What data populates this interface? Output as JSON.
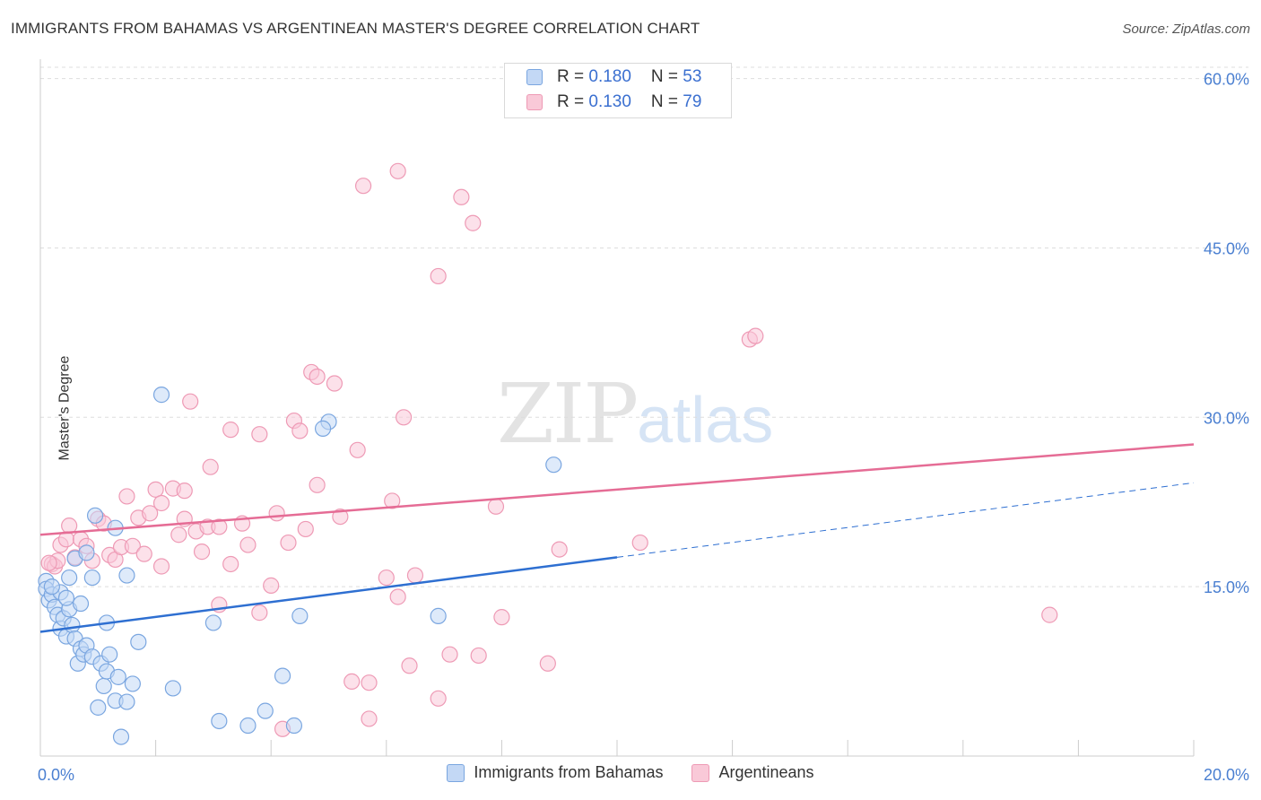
{
  "title": "IMMIGRANTS FROM BAHAMAS VS ARGENTINEAN MASTER'S DEGREE CORRELATION CHART",
  "source": "Source: ZipAtlas.com",
  "watermark": {
    "a": "ZIP",
    "b": "atlas"
  },
  "legend": {
    "rows": [
      {
        "r_label": "R = ",
        "r_value": "0.180",
        "n_label": "N = ",
        "n_value": "53"
      },
      {
        "r_label": "R = ",
        "r_value": "0.130",
        "n_label": "N = ",
        "n_value": "79"
      }
    ]
  },
  "colors": {
    "blue_fill": "#c3d8f5",
    "blue_stroke": "#7aa6e0",
    "blue_line": "#2e6fd1",
    "pink_fill": "#f9c9d8",
    "pink_stroke": "#ee9ab5",
    "pink_line": "#e56c95"
  },
  "chart_data": {
    "type": "scatter",
    "ylabel": "Master's Degree",
    "xlim": [
      0,
      20
    ],
    "ylim": [
      0,
      61
    ],
    "x_tick_labels": [
      "0.0%",
      "20.0%"
    ],
    "y_ticks": [
      15,
      30,
      45,
      60
    ],
    "y_tick_labels": [
      "15.0%",
      "30.0%",
      "45.0%",
      "60.0%"
    ],
    "grid": true,
    "series": [
      {
        "name": "Immigrants from Bahamas",
        "points": [
          [
            0.1,
            15.5
          ],
          [
            0.1,
            14.8
          ],
          [
            0.15,
            13.8
          ],
          [
            0.2,
            14.3
          ],
          [
            0.25,
            13.2
          ],
          [
            0.3,
            12.5
          ],
          [
            0.35,
            14.5
          ],
          [
            0.35,
            11.3
          ],
          [
            0.4,
            12.2
          ],
          [
            0.45,
            10.6
          ],
          [
            0.5,
            13.0
          ],
          [
            0.5,
            15.8
          ],
          [
            0.55,
            11.6
          ],
          [
            0.6,
            17.5
          ],
          [
            0.6,
            10.4
          ],
          [
            0.65,
            8.2
          ],
          [
            0.7,
            9.5
          ],
          [
            0.7,
            13.5
          ],
          [
            0.75,
            9.0
          ],
          [
            0.8,
            9.8
          ],
          [
            0.8,
            18.0
          ],
          [
            0.9,
            8.8
          ],
          [
            0.9,
            15.8
          ],
          [
            0.95,
            21.3
          ],
          [
            1.0,
            4.3
          ],
          [
            1.05,
            8.2
          ],
          [
            1.1,
            6.2
          ],
          [
            1.15,
            7.5
          ],
          [
            1.15,
            11.8
          ],
          [
            1.2,
            9.0
          ],
          [
            1.3,
            20.2
          ],
          [
            1.3,
            4.9
          ],
          [
            1.35,
            7.0
          ],
          [
            1.4,
            1.7
          ],
          [
            1.5,
            16.0
          ],
          [
            1.5,
            4.8
          ],
          [
            1.6,
            6.4
          ],
          [
            1.7,
            10.1
          ],
          [
            2.1,
            32.0
          ],
          [
            2.3,
            6.0
          ],
          [
            3.0,
            11.8
          ],
          [
            3.1,
            3.1
          ],
          [
            3.6,
            2.7
          ],
          [
            3.9,
            4.0
          ],
          [
            4.2,
            7.1
          ],
          [
            4.4,
            2.7
          ],
          [
            4.5,
            12.4
          ],
          [
            5.0,
            29.6
          ],
          [
            4.9,
            29.0
          ],
          [
            6.9,
            12.4
          ],
          [
            8.9,
            25.8
          ],
          [
            0.2,
            15.0
          ],
          [
            0.45,
            14.0
          ]
        ]
      },
      {
        "name": "Argentineans",
        "points": [
          [
            0.2,
            17.0
          ],
          [
            0.25,
            16.8
          ],
          [
            0.3,
            17.3
          ],
          [
            0.35,
            18.7
          ],
          [
            0.45,
            19.2
          ],
          [
            0.5,
            20.4
          ],
          [
            0.6,
            17.6
          ],
          [
            0.7,
            19.2
          ],
          [
            0.8,
            18.6
          ],
          [
            0.9,
            17.3
          ],
          [
            1.0,
            21.0
          ],
          [
            1.1,
            20.6
          ],
          [
            1.2,
            17.8
          ],
          [
            1.3,
            17.4
          ],
          [
            1.4,
            18.5
          ],
          [
            1.5,
            23.0
          ],
          [
            1.6,
            18.6
          ],
          [
            1.7,
            21.1
          ],
          [
            1.8,
            17.9
          ],
          [
            1.9,
            21.5
          ],
          [
            2.0,
            23.6
          ],
          [
            2.1,
            22.4
          ],
          [
            2.1,
            16.8
          ],
          [
            2.3,
            23.7
          ],
          [
            2.4,
            19.6
          ],
          [
            2.5,
            23.5
          ],
          [
            2.5,
            21.0
          ],
          [
            2.6,
            31.4
          ],
          [
            2.7,
            19.9
          ],
          [
            2.8,
            18.1
          ],
          [
            2.9,
            20.3
          ],
          [
            2.95,
            25.6
          ],
          [
            3.1,
            20.3
          ],
          [
            3.1,
            13.4
          ],
          [
            3.3,
            17.0
          ],
          [
            3.3,
            28.9
          ],
          [
            3.5,
            20.6
          ],
          [
            3.6,
            18.7
          ],
          [
            3.8,
            28.5
          ],
          [
            3.8,
            12.7
          ],
          [
            4.0,
            15.1
          ],
          [
            4.1,
            21.5
          ],
          [
            4.2,
            2.4
          ],
          [
            4.3,
            18.9
          ],
          [
            4.4,
            29.7
          ],
          [
            4.5,
            28.8
          ],
          [
            4.6,
            20.1
          ],
          [
            4.7,
            34.0
          ],
          [
            4.8,
            24.0
          ],
          [
            4.8,
            33.6
          ],
          [
            5.1,
            33.0
          ],
          [
            5.2,
            21.2
          ],
          [
            5.4,
            6.6
          ],
          [
            5.5,
            27.1
          ],
          [
            5.6,
            50.5
          ],
          [
            5.7,
            3.3
          ],
          [
            5.7,
            6.5
          ],
          [
            6.0,
            15.8
          ],
          [
            6.1,
            22.6
          ],
          [
            6.2,
            51.8
          ],
          [
            6.2,
            14.1
          ],
          [
            6.3,
            30.0
          ],
          [
            6.4,
            8.0
          ],
          [
            6.5,
            16.0
          ],
          [
            6.9,
            42.5
          ],
          [
            6.9,
            5.1
          ],
          [
            7.1,
            9.0
          ],
          [
            7.3,
            49.5
          ],
          [
            7.5,
            47.2
          ],
          [
            7.6,
            8.9
          ],
          [
            7.9,
            22.1
          ],
          [
            8.0,
            12.3
          ],
          [
            8.8,
            8.2
          ],
          [
            9.0,
            18.3
          ],
          [
            10.4,
            18.9
          ],
          [
            12.3,
            36.9
          ],
          [
            12.4,
            37.2
          ],
          [
            17.5,
            12.5
          ],
          [
            0.15,
            17.1
          ]
        ]
      }
    ],
    "trend_lines": [
      {
        "series": "Immigrants from Bahamas",
        "x": [
          0,
          10
        ],
        "y": [
          11.0,
          17.6
        ],
        "dashed_extension_x": [
          10,
          20
        ],
        "dashed_extension_y": [
          17.6,
          24.2
        ]
      },
      {
        "series": "Argentineans",
        "x": [
          0,
          20
        ],
        "y": [
          19.6,
          27.6
        ]
      }
    ]
  }
}
